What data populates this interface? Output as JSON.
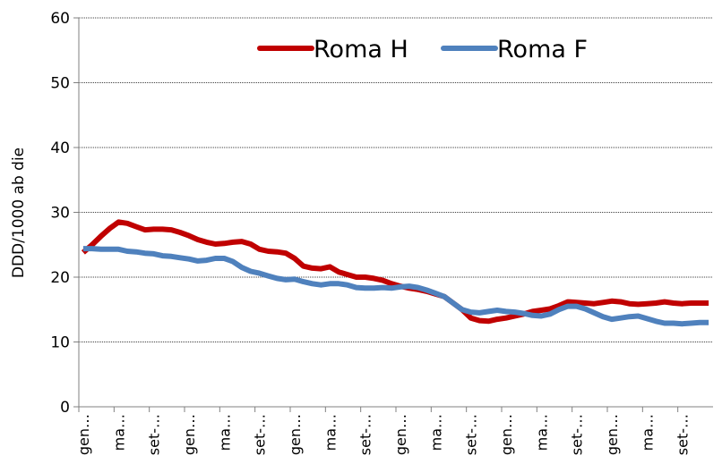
{
  "chart_data": {
    "type": "line",
    "y_label": "DDD/1000 ab die",
    "categories": [
      "gen…",
      null,
      null,
      null,
      "ma…",
      null,
      null,
      null,
      "set-…",
      null,
      null,
      null,
      "gen…",
      null,
      null,
      null,
      "ma…",
      null,
      null,
      null,
      "set-…",
      null,
      null,
      null,
      "gen…",
      null,
      null,
      null,
      "ma…",
      null,
      null,
      null,
      "set-…",
      null,
      null,
      null,
      "gen…",
      null,
      null,
      null,
      "ma…",
      null,
      null,
      null,
      "set-…",
      null,
      null,
      null,
      "gen…",
      null,
      null,
      null,
      "ma…",
      null,
      null,
      null,
      "set-…",
      null,
      null,
      null,
      "gen…",
      null,
      null,
      null,
      "ma…",
      null,
      null,
      null,
      "set-…",
      null,
      null,
      null
    ],
    "series": [
      {
        "name": "Roma H",
        "color": "#c00000",
        "values": [
          23.8,
          25,
          26.3,
          27.5,
          28.5,
          28.3,
          27.8,
          27.3,
          27.4,
          27.4,
          27.3,
          26.9,
          26.4,
          25.8,
          25.4,
          25.1,
          25.2,
          25.4,
          25.5,
          25.1,
          24.3,
          24,
          23.9,
          23.7,
          22.9,
          21.7,
          21.4,
          21.3,
          21.6,
          20.8,
          20.4,
          20,
          20,
          19.8,
          19.5,
          19,
          18.6,
          18.3,
          18.1,
          17.8,
          17.4,
          17,
          16,
          15,
          13.7,
          13.3,
          13.2,
          13.5,
          13.7,
          14,
          14.3,
          14.7,
          14.9,
          15.1,
          15.6,
          16.2,
          16.1,
          16,
          15.9,
          16.1,
          16.3,
          16.2,
          15.9,
          15.8,
          15.9,
          16,
          16.2,
          16,
          15.9,
          16,
          16,
          16
        ]
      },
      {
        "name": "Roma F",
        "color": "#4f81bd",
        "values": [
          24.4,
          24.4,
          24.3,
          24.3,
          24.3,
          24,
          23.9,
          23.7,
          23.6,
          23.3,
          23.2,
          23,
          22.8,
          22.5,
          22.6,
          22.9,
          22.9,
          22.4,
          21.5,
          20.9,
          20.6,
          20.2,
          19.8,
          19.6,
          19.7,
          19.3,
          19,
          18.8,
          19,
          19,
          18.8,
          18.4,
          18.3,
          18.3,
          18.4,
          18.3,
          18.5,
          18.6,
          18.4,
          18,
          17.5,
          17,
          16,
          15,
          14.6,
          14.5,
          14.7,
          14.9,
          14.7,
          14.6,
          14.4,
          14.1,
          14,
          14.3,
          15,
          15.5,
          15.5,
          15.1,
          14.5,
          13.9,
          13.5,
          13.7,
          13.9,
          14,
          13.6,
          13.2,
          12.9,
          12.9,
          12.8,
          12.9,
          13,
          13
        ]
      }
    ],
    "ylim": [
      0,
      60
    ],
    "yticks": [
      0,
      10,
      20,
      30,
      40,
      50,
      60
    ],
    "grid": true
  }
}
